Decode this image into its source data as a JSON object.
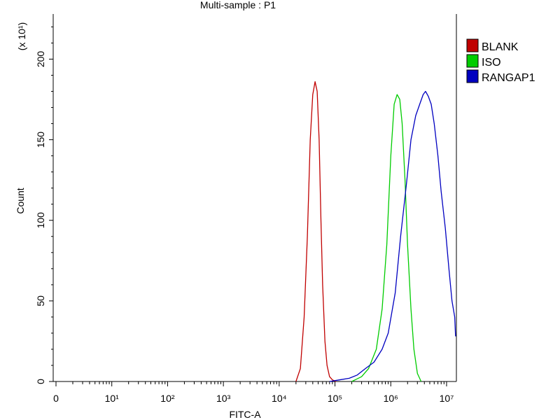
{
  "chart_data": {
    "type": "line",
    "title": "Multi-sample : P1",
    "xlabel": "FITC-A",
    "ylabel": "Count",
    "y_multiplier_label": "(x 10¹)",
    "x_scale": "log",
    "x_range": [
      1,
      15000000
    ],
    "ylim": [
      0,
      228
    ],
    "grid": false,
    "legend_position": "right",
    "x_tick_labels": [
      {
        "value": 1,
        "text": "0"
      },
      {
        "value": 10,
        "text": "10¹"
      },
      {
        "value": 100,
        "text": "10²"
      },
      {
        "value": 1000,
        "text": "10³"
      },
      {
        "value": 10000,
        "text": "10⁴"
      },
      {
        "value": 100000,
        "text": "10⁵"
      },
      {
        "value": 1000000,
        "text": "10⁶"
      },
      {
        "value": 10000000,
        "text": "10⁷"
      }
    ],
    "y_tick_labels": [
      {
        "value": 0,
        "text": "0"
      },
      {
        "value": 50,
        "text": "50"
      },
      {
        "value": 100,
        "text": "100"
      },
      {
        "value": 150,
        "text": "150"
      },
      {
        "value": 200,
        "text": "200"
      }
    ],
    "series": [
      {
        "name": "BLANK",
        "color": "#c00000",
        "x": [
          20000,
          24000,
          28000,
          32000,
          36000,
          40000,
          44000,
          48000,
          52000,
          56000,
          60000,
          66000,
          72000,
          80000,
          90000,
          105000
        ],
        "y": [
          0,
          8,
          40,
          90,
          150,
          178,
          186,
          180,
          150,
          100,
          60,
          25,
          10,
          3,
          1,
          0
        ]
      },
      {
        "name": "ISO",
        "color": "#00cc00",
        "x": [
          200000,
          300000,
          400000,
          550000,
          700000,
          850000,
          1000000,
          1150000,
          1300000,
          1450000,
          1600000,
          1800000,
          2000000,
          2300000,
          2600000,
          3000000,
          3500000
        ],
        "y": [
          0,
          3,
          8,
          20,
          45,
          85,
          140,
          172,
          178,
          175,
          160,
          125,
          85,
          45,
          20,
          5,
          0
        ]
      },
      {
        "name": "RANGAP1",
        "color": "#0000c0",
        "x": [
          80000,
          120000,
          180000,
          250000,
          350000,
          500000,
          700000,
          900000,
          1200000,
          1500000,
          1900000,
          2300000,
          2800000,
          3300000,
          3800000,
          4200000,
          4700000,
          5300000,
          6000000,
          7000000,
          8000000,
          9500000,
          11000000,
          12500000,
          14000000,
          14500000
        ],
        "y": [
          0,
          1,
          2,
          4,
          8,
          12,
          20,
          30,
          55,
          90,
          122,
          150,
          165,
          172,
          178,
          180,
          177,
          172,
          160,
          140,
          118,
          95,
          70,
          50,
          40,
          28
        ]
      }
    ]
  }
}
